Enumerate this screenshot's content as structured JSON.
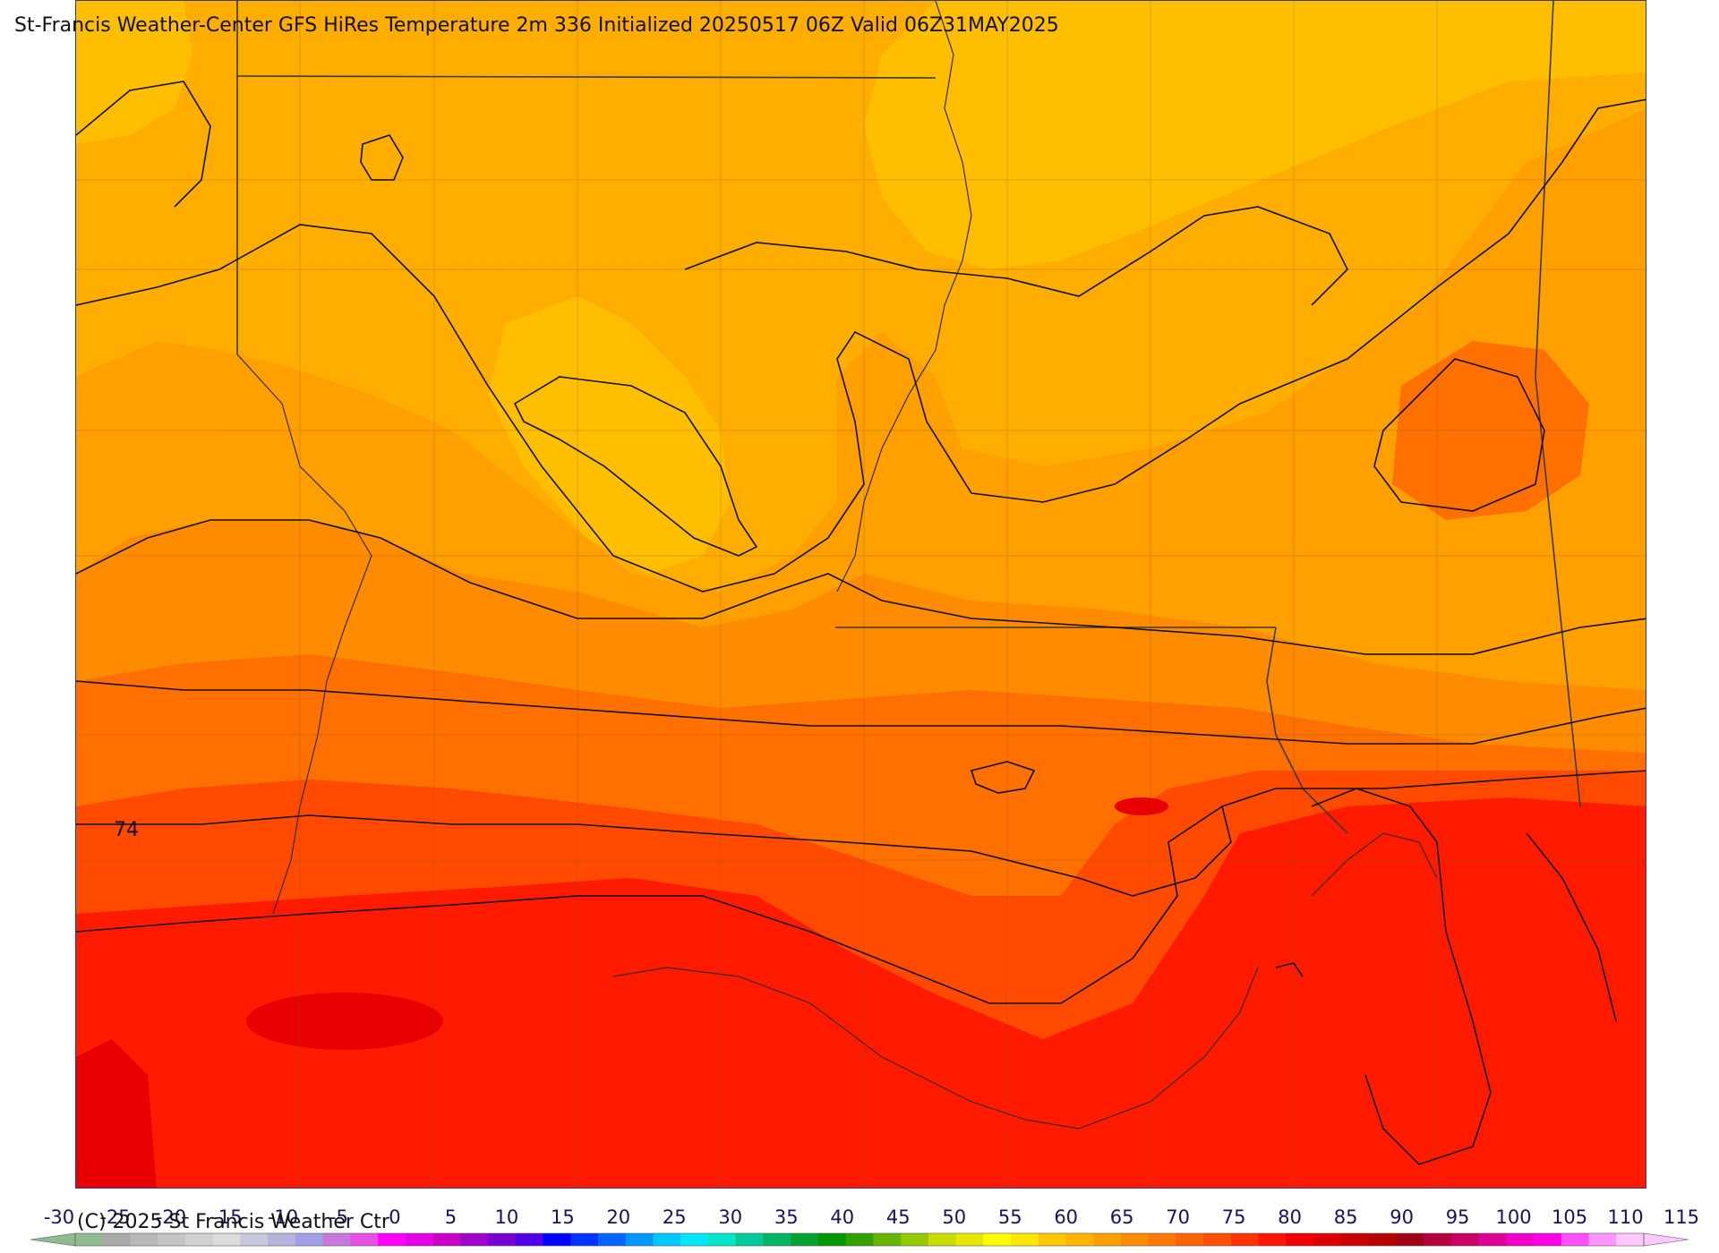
{
  "title": "St-Francis Weather-Center GFS HiRes Temperature 2m  336 Initialized 20250517 06Z Valid 06Z31MAY2025",
  "copyright": "(C) 2025 St Francis Weather Ctr",
  "contour_label": "74",
  "colorbar": {
    "ticks": [
      "-30",
      "-25",
      "-20",
      "-15",
      "-10",
      "-5",
      "0",
      "5",
      "10",
      "15",
      "20",
      "25",
      "30",
      "35",
      "40",
      "45",
      "50",
      "55",
      "60",
      "65",
      "70",
      "75",
      "80",
      "85",
      "90",
      "95",
      "100",
      "105",
      "110",
      "115"
    ],
    "colors": [
      "#8fbc8f",
      "#a9a9a9",
      "#b8b8b8",
      "#c4c4c4",
      "#d0d0d0",
      "#dcdcdc",
      "#c8c8dc",
      "#b4b4dc",
      "#a0a0e6",
      "#c878dc",
      "#e650e6",
      "#ff00ff",
      "#e600e6",
      "#c800c8",
      "#a000c8",
      "#7800d2",
      "#5000e6",
      "#0000ff",
      "#0032ff",
      "#0064ff",
      "#0096ff",
      "#00c8ff",
      "#00e6ff",
      "#00e6c8",
      "#00c896",
      "#00b464",
      "#00a032",
      "#009600",
      "#32a000",
      "#64b400",
      "#96c800",
      "#c8dc00",
      "#e6e600",
      "#ffff00",
      "#ffe600",
      "#ffc800",
      "#ffb400",
      "#ffa000",
      "#ff8c00",
      "#ff7800",
      "#ff6400",
      "#ff5000",
      "#ff3200",
      "#ff1400",
      "#f00000",
      "#dc0000",
      "#c80000",
      "#b40000",
      "#a00014",
      "#b4003c",
      "#c80064",
      "#dc0096",
      "#f000c8",
      "#ff00e6",
      "#ff50ff",
      "#ff96ff",
      "#ffc8ff"
    ],
    "end_left_color": "#8fbc8f",
    "end_right_color": "#ffc8ff"
  },
  "colors": {
    "yellow": "#ffbe00",
    "gold": "#ffae00",
    "light_orange": "#ff9f00",
    "orange": "#ff8c00",
    "dark_orange": "#ff7000",
    "orange_red": "#ff4a00",
    "red": "#ff1a00",
    "deep_red": "#e80000",
    "border": "#3a3a3a",
    "county": "#7a5a2a"
  }
}
